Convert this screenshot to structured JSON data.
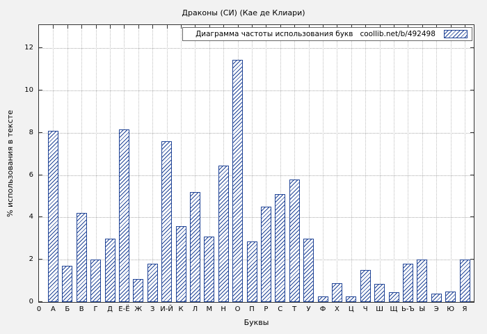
{
  "chart_data": {
    "type": "bar",
    "title": "Драконы (СИ) (Кае де Клиари)",
    "legend_label": "Диаграмма частоты использования букв",
    "legend_url": "coollib.net/b/492498",
    "xlabel": "Буквы",
    "ylabel": "% использования в тексте",
    "origin_tick_label": "0",
    "categories": [
      "А",
      "Б",
      "В",
      "Г",
      "Д",
      "Е-Ё",
      "Ж",
      "З",
      "И-Й",
      "К",
      "Л",
      "М",
      "Н",
      "О",
      "П",
      "Р",
      "С",
      "Т",
      "У",
      "Ф",
      "Х",
      "Ц",
      "Ч",
      "Ш",
      "Щ",
      "Ь-Ъ",
      "Ы",
      "Э",
      "Ю",
      "Я"
    ],
    "values": [
      8.1,
      1.7,
      4.2,
      2.0,
      3.0,
      8.15,
      1.1,
      1.8,
      7.6,
      3.6,
      5.2,
      3.1,
      6.45,
      11.45,
      2.85,
      4.5,
      5.1,
      5.8,
      3.0,
      0.25,
      0.9,
      0.25,
      1.5,
      0.85,
      0.45,
      1.8,
      2.0,
      0.4,
      0.5,
      2.0
    ],
    "y_ticks": [
      0,
      2,
      4,
      6,
      8,
      10,
      12
    ],
    "ylim": [
      0,
      13.1
    ],
    "grid": "dotted",
    "legend_position": "top-inside-boxed",
    "bar_color": "#1f4396",
    "background_color": "#f2f2f2",
    "plot_background": "#ffffff"
  }
}
